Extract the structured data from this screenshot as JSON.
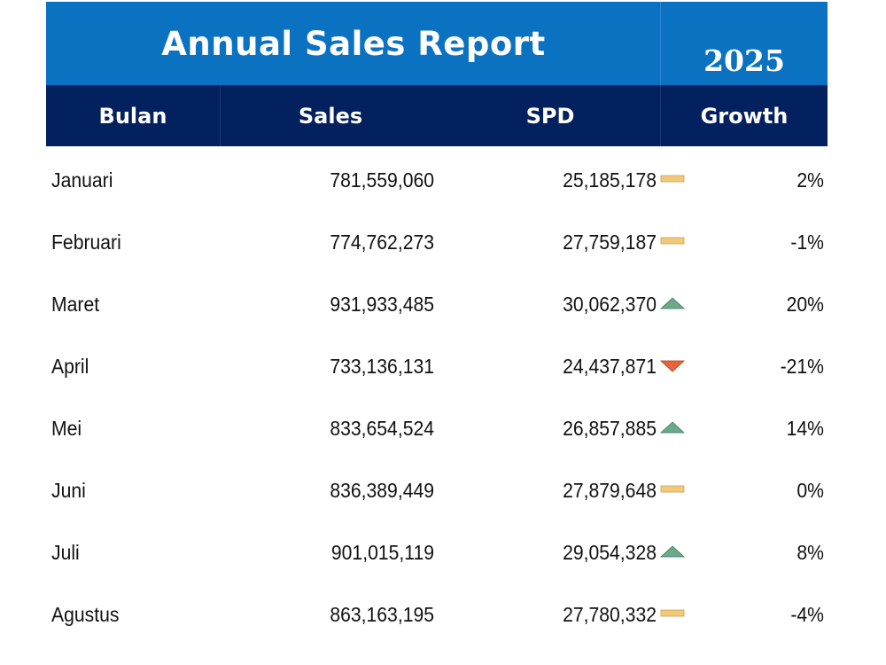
{
  "report": {
    "title": "Annual Sales Report",
    "year": "2025"
  },
  "columns": {
    "month": "Bulan",
    "sales": "Sales",
    "spd": "SPD",
    "growth": "Growth"
  },
  "colors": {
    "title_band": "#0b72c2",
    "header_band": "#04215f",
    "trend_up": "#6aa98a",
    "trend_down": "#e8643c",
    "trend_flat": "#f1ca79"
  },
  "rows": [
    {
      "month": "Januari",
      "sales": "781,559,060",
      "spd": "25,185,178",
      "trend": "flat",
      "trend_icon": "flat-bar-icon",
      "growth": "2%"
    },
    {
      "month": "Februari",
      "sales": "774,762,273",
      "spd": "27,759,187",
      "trend": "flat",
      "trend_icon": "flat-bar-icon",
      "growth": "-1%"
    },
    {
      "month": "Maret",
      "sales": "931,933,485",
      "spd": "30,062,370",
      "trend": "up",
      "trend_icon": "up-triangle-icon",
      "growth": "20%"
    },
    {
      "month": "April",
      "sales": "733,136,131",
      "spd": "24,437,871",
      "trend": "down",
      "trend_icon": "down-triangle-icon",
      "growth": "-21%"
    },
    {
      "month": "Mei",
      "sales": "833,654,524",
      "spd": "26,857,885",
      "trend": "up",
      "trend_icon": "up-triangle-icon",
      "growth": "14%"
    },
    {
      "month": "Juni",
      "sales": "836,389,449",
      "spd": "27,879,648",
      "trend": "flat",
      "trend_icon": "flat-bar-icon",
      "growth": "0%"
    },
    {
      "month": "Juli",
      "sales": "901,015,119",
      "spd": "29,054,328",
      "trend": "up",
      "trend_icon": "up-triangle-icon",
      "growth": "8%"
    },
    {
      "month": "Agustus",
      "sales": "863,163,195",
      "spd": "27,780,332",
      "trend": "flat",
      "trend_icon": "flat-bar-icon",
      "growth": "-4%"
    }
  ]
}
